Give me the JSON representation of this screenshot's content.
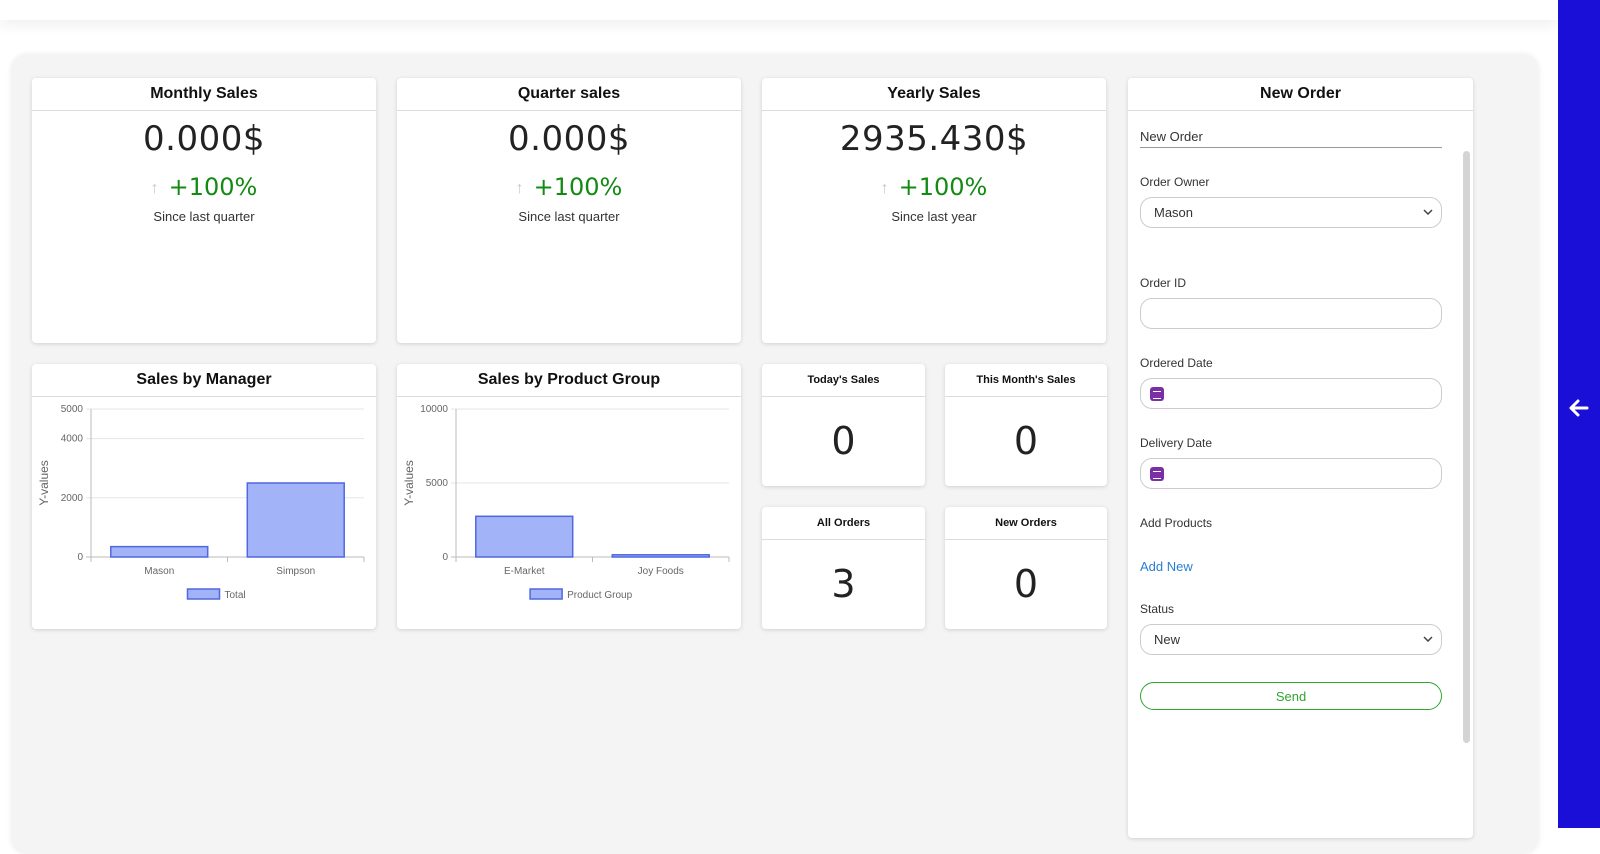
{
  "cards": {
    "monthly": {
      "title": "Monthly Sales",
      "value": "0.000$",
      "change": "+100%",
      "since": "Since last quarter"
    },
    "quarter": {
      "title": "Quarter sales",
      "value": "0.000$",
      "change": "+100%",
      "since": "Since last quarter"
    },
    "yearly": {
      "title": "Yearly Sales",
      "value": "2935.430$",
      "change": "+100%",
      "since": "Since last year"
    }
  },
  "stats": {
    "today": {
      "title": "Today's Sales",
      "value": "0"
    },
    "month": {
      "title": "This Month's Sales",
      "value": "0"
    },
    "all_orders": {
      "title": "All Orders",
      "value": "3"
    },
    "new_orders": {
      "title": "New Orders",
      "value": "0"
    }
  },
  "chart_titles": {
    "manager": "Sales by Manager",
    "product": "Sales by Product Group"
  },
  "chart_data": [
    {
      "type": "bar",
      "title": "Sales by Manager",
      "categories": [
        "Mason",
        "Simpson"
      ],
      "series": [
        {
          "name": "Total",
          "values": [
            350,
            2500
          ]
        }
      ],
      "ylabel": "Y-values",
      "yticks": [
        "0",
        "2000",
        "4000",
        "5000"
      ],
      "ylim": [
        0,
        5000
      ],
      "grid": true,
      "legend": "bottom",
      "color": "#a3b3f7",
      "border_color": "#4f68e0"
    },
    {
      "type": "bar",
      "title": "Sales by Product Group",
      "categories": [
        "E-Market",
        "Joy Foods"
      ],
      "series": [
        {
          "name": "Product Group",
          "values": [
            2750,
            150
          ]
        }
      ],
      "ylabel": "Y-values",
      "yticks": [
        "0",
        "5000",
        "10000"
      ],
      "ylim": [
        0,
        10000
      ],
      "grid": true,
      "legend": "bottom",
      "color": "#a3b3f7",
      "border_color": "#4f68e0"
    }
  ],
  "form": {
    "header": "New Order",
    "title_value": "New Order",
    "owner_label": "Order Owner",
    "owner_value": "Mason",
    "order_id_label": "Order ID",
    "ordered_date_label": "Ordered Date",
    "delivery_date_label": "Delivery Date",
    "add_products_label": "Add Products",
    "add_new_link": "Add New",
    "status_label": "Status",
    "status_value": "New",
    "send_label": "Send"
  },
  "icons": {
    "arrow_up": "↑",
    "chevron": "⌄",
    "back_arrow": "🡐"
  },
  "colors": {
    "sidebar": "#1a0fd6",
    "positive": "#138a13",
    "link": "#2a7fd4",
    "send": "#2ea52e",
    "calendar_icon": "#7b2fa4"
  }
}
